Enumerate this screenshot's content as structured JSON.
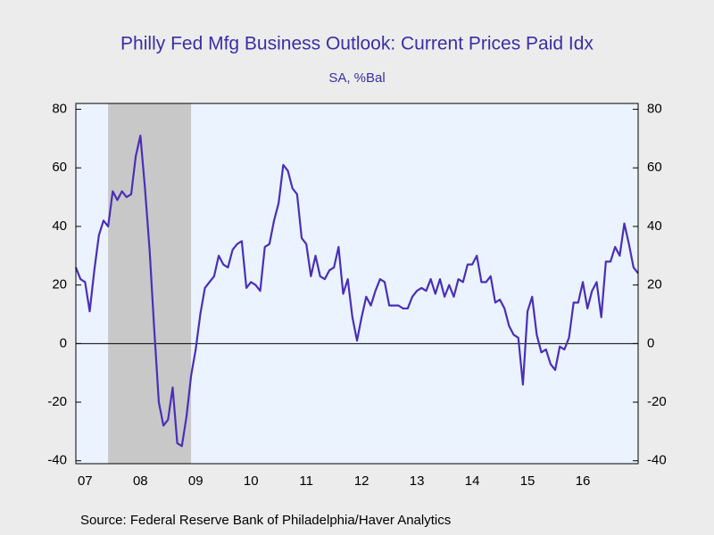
{
  "chart_data": {
    "type": "line",
    "title": "Philly Fed Mfg Business Outlook: Current Prices Paid Idx",
    "subtitle": "SA, %Bal",
    "source": "Source:  Federal Reserve Bank of Philadelphia/Haver Analytics",
    "categories": [
      null,
      null,
      "07",
      null,
      null,
      null,
      null,
      null,
      null,
      null,
      null,
      null,
      null,
      null,
      "08",
      null,
      null,
      null,
      null,
      null,
      null,
      null,
      null,
      null,
      null,
      null,
      "09",
      null,
      null,
      null,
      null,
      null,
      null,
      null,
      null,
      null,
      null,
      null,
      "10",
      null,
      null,
      null,
      null,
      null,
      null,
      null,
      null,
      null,
      null,
      null,
      "11",
      null,
      null,
      null,
      null,
      null,
      null,
      null,
      null,
      null,
      null,
      null,
      "12",
      null,
      null,
      null,
      null,
      null,
      null,
      null,
      null,
      null,
      null,
      null,
      "13",
      null,
      null,
      null,
      null,
      null,
      null,
      null,
      null,
      null,
      null,
      null,
      "14",
      null,
      null,
      null,
      null,
      null,
      null,
      null,
      null,
      null,
      null,
      null,
      "15",
      null,
      null,
      null,
      null,
      null,
      null,
      null,
      null,
      null,
      null,
      null,
      "16",
      null,
      null,
      null,
      null,
      null,
      null,
      null,
      null,
      null,
      null,
      null,
      null
    ],
    "series": [
      {
        "name": "Current Prices Paid Idx",
        "color": "#4a2fb8",
        "values": [
          26,
          22,
          21,
          11,
          25,
          37,
          42,
          40,
          52,
          49,
          52,
          50,
          51,
          64,
          71,
          53,
          32,
          5,
          -20,
          -28,
          -26,
          -15,
          -34,
          -35,
          -25,
          -11,
          -2,
          10,
          19,
          21,
          23,
          30,
          27,
          26,
          32,
          34,
          35,
          19,
          21,
          20,
          18,
          33,
          34,
          42,
          48,
          61,
          59,
          53,
          51,
          36,
          34,
          23,
          30,
          23,
          22,
          25,
          26,
          33,
          17,
          22,
          9,
          1,
          9,
          16,
          13,
          18,
          22,
          21,
          13,
          13,
          13,
          12,
          12,
          16,
          18,
          19,
          18,
          22,
          17,
          22,
          16,
          20,
          16,
          22,
          21,
          27,
          27,
          30,
          21,
          21,
          23,
          14,
          15,
          12,
          6,
          3,
          2,
          -14,
          11,
          16,
          3,
          -3,
          -2,
          -7,
          -9,
          -1,
          -2,
          2,
          14,
          14,
          21,
          12,
          18,
          21,
          9,
          28,
          28,
          33,
          30,
          41,
          34,
          26,
          24
        ]
      }
    ],
    "recession_shading": [
      [
        7,
        25
      ]
    ],
    "ylim": [
      -41,
      82
    ],
    "yticks": [
      -40,
      -20,
      0,
      20,
      40,
      60,
      80
    ],
    "y2lim": [
      -41,
      82
    ],
    "y2ticks": [
      -40,
      -20,
      0,
      20,
      40,
      60,
      80
    ],
    "zero_line": true
  }
}
